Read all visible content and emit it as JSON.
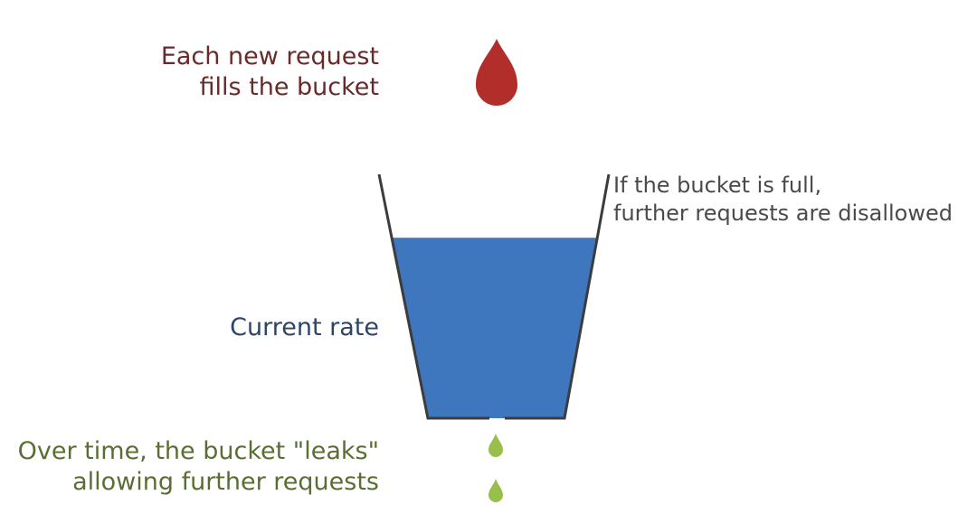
{
  "fill_note": {
    "line1": "Each new request",
    "line2": "fills the bucket"
  },
  "full_note": {
    "line1": "If the bucket is full,",
    "line2": "further requests are disallowed"
  },
  "rate_note": {
    "text": "Current rate"
  },
  "leak_note": {
    "line1": "Over time, the bucket \"leaks\"",
    "line2": "allowing further requests"
  },
  "bucket": {
    "fill_fraction": 0.74
  },
  "colors": {
    "fill_text": "#6b2a2a",
    "full_text": "#4a4a4a",
    "rate_text": "#2d4566",
    "leak_text": "#5a6e33",
    "drop_red": "#b22e2a",
    "water": "#3e77bd",
    "bucket_outline": "#3c3c3c",
    "leak_drop": "#98bf4a"
  }
}
